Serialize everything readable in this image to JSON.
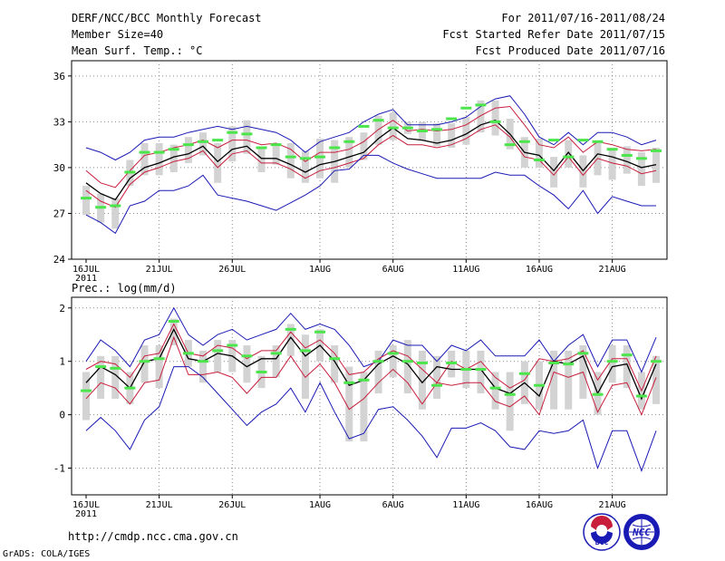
{
  "header": {
    "title": "DERF/NCC/BCC Monthly Forecast",
    "member_size": "Member Size=40",
    "variable": "Mean Surf. Temp.: °C",
    "period": "For 2011/07/16-2011/08/24",
    "started": "Fcst Started Refer Date 2011/07/15",
    "produced": "Fcst Produced Date 2011/07/16"
  },
  "footer": {
    "url": "http://cmdp.ncc.cma.gov.cn",
    "credit": "GrADS: COLA/IGES",
    "logo_bcc": "BCC",
    "logo_ncc": "NCC"
  },
  "colors": {
    "grid": "#888888",
    "box": "#d3d3d3",
    "green": "#4ce64c",
    "blue": "#1a1ab4",
    "red": "#c81e3c",
    "black": "#000000"
  },
  "x_axis": {
    "days": 40,
    "tick_labels": [
      "16JUL",
      "21JUL",
      "26JUL",
      "1AUG",
      "6AUG",
      "11AUG",
      "16AUG",
      "21AUG"
    ],
    "tick_days": [
      0,
      5,
      10,
      16,
      21,
      26,
      31,
      36
    ],
    "year_label": "2011"
  },
  "chart_data": [
    {
      "type": "line",
      "title": "Mean Surf. Temp.: °C",
      "xlabel": "",
      "ylabel": "°C",
      "ylim": [
        24,
        37
      ],
      "yticks": [
        24,
        27,
        30,
        33,
        36
      ],
      "x": [
        0,
        1,
        2,
        3,
        4,
        5,
        6,
        7,
        8,
        9,
        10,
        11,
        12,
        13,
        14,
        15,
        16,
        17,
        18,
        19,
        20,
        21,
        22,
        23,
        24,
        25,
        26,
        27,
        28,
        29,
        30,
        31,
        32,
        33,
        34,
        35,
        36,
        37,
        38,
        39
      ],
      "series": [
        {
          "name": "max",
          "values": [
            31.3,
            31.0,
            30.5,
            31.0,
            31.8,
            32.0,
            32.0,
            32.3,
            32.5,
            32.7,
            32.5,
            32.7,
            32.5,
            32.3,
            31.8,
            31.0,
            31.7,
            32.0,
            32.3,
            33.0,
            33.5,
            33.8,
            32.8,
            32.8,
            32.8,
            33.0,
            33.3,
            34.0,
            34.5,
            34.7,
            33.5,
            32.0,
            31.5,
            32.3,
            31.5,
            32.3,
            32.3,
            32.0,
            31.5,
            31.8
          ]
        },
        {
          "name": "ens_upper",
          "values": [
            29.8,
            29.0,
            28.7,
            29.8,
            30.8,
            31.0,
            31.3,
            31.5,
            31.8,
            31.3,
            31.8,
            31.8,
            31.5,
            31.6,
            31.2,
            30.4,
            31.0,
            31.0,
            31.2,
            31.7,
            32.5,
            33.1,
            32.4,
            32.5,
            32.4,
            32.5,
            32.8,
            33.4,
            33.9,
            34.0,
            32.8,
            31.5,
            31.3,
            32.0,
            31.0,
            31.7,
            31.5,
            31.2,
            31.1,
            31.2
          ]
        },
        {
          "name": "ens_mean",
          "values": [
            29.0,
            28.3,
            27.9,
            29.3,
            30.0,
            30.3,
            30.7,
            30.9,
            31.4,
            30.4,
            31.2,
            31.4,
            30.6,
            30.6,
            30.2,
            29.7,
            30.2,
            30.4,
            30.7,
            31.0,
            31.9,
            32.6,
            31.9,
            31.8,
            31.6,
            31.8,
            32.2,
            32.8,
            33.1,
            32.2,
            31.0,
            30.8,
            29.8,
            31.0,
            29.8,
            30.9,
            30.7,
            30.4,
            30.0,
            30.2
          ]
        },
        {
          "name": "ens_lower",
          "values": [
            28.5,
            27.8,
            27.4,
            28.9,
            29.7,
            30.0,
            30.4,
            30.6,
            31.1,
            30.0,
            30.9,
            31.1,
            30.3,
            30.3,
            29.9,
            29.3,
            29.8,
            30.0,
            30.3,
            30.6,
            31.5,
            32.1,
            31.5,
            31.5,
            31.3,
            31.5,
            31.9,
            32.5,
            32.8,
            32.0,
            30.7,
            30.5,
            29.5,
            30.7,
            29.5,
            30.6,
            30.3,
            30.1,
            29.6,
            29.8
          ]
        },
        {
          "name": "min",
          "values": [
            26.9,
            26.4,
            25.7,
            27.5,
            27.8,
            28.5,
            28.5,
            28.8,
            29.5,
            28.2,
            28.0,
            27.8,
            27.5,
            27.2,
            27.7,
            28.2,
            28.8,
            29.8,
            29.9,
            30.8,
            30.8,
            30.3,
            29.9,
            29.6,
            29.3,
            29.3,
            29.3,
            29.3,
            29.7,
            29.5,
            29.5,
            28.8,
            28.2,
            27.3,
            28.5,
            27.0,
            28.1,
            27.8,
            27.5,
            27.5
          ]
        },
        {
          "name": "median",
          "values": [
            28.0,
            27.4,
            27.5,
            29.7,
            31.0,
            31.0,
            31.2,
            31.5,
            31.7,
            31.8,
            32.3,
            32.2,
            31.3,
            31.5,
            30.7,
            30.6,
            30.7,
            31.3,
            31.7,
            32.7,
            33.1,
            32.6,
            32.6,
            32.4,
            32.5,
            33.2,
            33.9,
            34.1,
            33.0,
            31.5,
            31.7,
            30.5,
            31.8,
            30.7,
            31.8,
            31.7,
            31.2,
            30.8,
            30.6,
            31.1
          ]
        }
      ],
      "boxes": [
        [
          26.9,
          28.8
        ],
        [
          26.4,
          28.3
        ],
        [
          26.0,
          28.0
        ],
        [
          28.8,
          30.5
        ],
        [
          29.5,
          31.6
        ],
        [
          29.5,
          31.6
        ],
        [
          29.7,
          31.5
        ],
        [
          30.3,
          32.0
        ],
        [
          30.8,
          32.3
        ],
        [
          29.0,
          31.6
        ],
        [
          30.4,
          32.7
        ],
        [
          30.9,
          33.1
        ],
        [
          29.7,
          31.3
        ],
        [
          30.2,
          31.6
        ],
        [
          29.3,
          31.6
        ],
        [
          29.0,
          31.1
        ],
        [
          29.3,
          31.9
        ],
        [
          29.0,
          31.8
        ],
        [
          30.0,
          32.0
        ],
        [
          30.5,
          32.3
        ],
        [
          31.5,
          33.4
        ],
        [
          31.8,
          33.6
        ],
        [
          32.2,
          33.0
        ],
        [
          31.8,
          33.0
        ],
        [
          31.4,
          32.9
        ],
        [
          31.3,
          32.9
        ],
        [
          31.5,
          33.3
        ],
        [
          32.3,
          34.4
        ],
        [
          32.1,
          34.4
        ],
        [
          31.2,
          33.2
        ],
        [
          30.0,
          32.0
        ],
        [
          30.0,
          31.9
        ],
        [
          28.7,
          30.7
        ],
        [
          30.0,
          31.8
        ],
        [
          28.7,
          30.8
        ],
        [
          29.5,
          31.7
        ],
        [
          29.2,
          31.3
        ],
        [
          29.6,
          31.4
        ],
        [
          28.8,
          31.0
        ],
        [
          29.0,
          31.3
        ]
      ]
    },
    {
      "type": "line",
      "title": "Prec.: log(mm/d)",
      "xlabel": "",
      "ylabel": "log(mm/d)",
      "ylim": [
        -1.5,
        2.2
      ],
      "yticks": [
        -1,
        0,
        1,
        2
      ],
      "x": [
        0,
        1,
        2,
        3,
        4,
        5,
        6,
        7,
        8,
        9,
        10,
        11,
        12,
        13,
        14,
        15,
        16,
        17,
        18,
        19,
        20,
        21,
        22,
        23,
        24,
        25,
        26,
        27,
        28,
        29,
        30,
        31,
        32,
        33,
        34,
        35,
        36,
        37,
        38,
        39
      ],
      "series": [
        {
          "name": "max",
          "values": [
            1.0,
            1.4,
            1.2,
            0.9,
            1.4,
            1.5,
            2.0,
            1.5,
            1.3,
            1.5,
            1.6,
            1.4,
            1.5,
            1.6,
            1.9,
            1.6,
            1.7,
            1.6,
            1.3,
            0.9,
            1.0,
            1.4,
            1.3,
            1.3,
            1.0,
            1.3,
            1.2,
            1.4,
            1.1,
            1.1,
            1.1,
            1.4,
            1.0,
            1.3,
            1.5,
            0.9,
            1.4,
            1.4,
            0.8,
            1.45
          ]
        },
        {
          "name": "ens_upper",
          "values": [
            0.85,
            1.0,
            0.95,
            0.7,
            1.1,
            1.15,
            1.7,
            1.15,
            1.1,
            1.3,
            1.25,
            1.05,
            1.2,
            1.2,
            1.55,
            1.25,
            1.4,
            1.15,
            0.75,
            0.8,
            1.05,
            1.2,
            1.1,
            0.85,
            0.6,
            1.0,
            0.85,
            1.0,
            0.7,
            0.5,
            0.65,
            1.05,
            1.0,
            1.05,
            1.2,
            0.65,
            1.05,
            1.05,
            0.45,
            1.1
          ]
        },
        {
          "name": "ens_mean",
          "values": [
            0.6,
            0.9,
            0.75,
            0.5,
            1.0,
            1.05,
            1.6,
            1.05,
            1.0,
            1.15,
            1.1,
            0.9,
            1.05,
            1.05,
            1.45,
            1.1,
            1.3,
            1.0,
            0.55,
            0.65,
            0.95,
            1.1,
            0.95,
            0.6,
            0.9,
            0.85,
            0.85,
            0.85,
            0.5,
            0.4,
            0.6,
            0.35,
            1.0,
            0.95,
            1.1,
            0.4,
            0.9,
            0.95,
            0.3,
            0.95
          ]
        },
        {
          "name": "ens_lower",
          "values": [
            0.3,
            0.6,
            0.5,
            0.2,
            0.6,
            0.65,
            1.45,
            0.75,
            0.75,
            0.8,
            0.7,
            0.4,
            0.7,
            0.7,
            1.1,
            0.7,
            0.95,
            0.6,
            0.1,
            0.3,
            0.6,
            0.85,
            0.6,
            0.2,
            0.6,
            0.55,
            0.6,
            0.6,
            0.25,
            0.15,
            0.35,
            0.0,
            0.8,
            0.7,
            0.8,
            0.05,
            0.55,
            0.6,
            0.0,
            0.7
          ]
        },
        {
          "name": "min",
          "values": [
            -0.3,
            -0.05,
            -0.3,
            -0.65,
            -0.1,
            0.15,
            0.9,
            0.9,
            0.7,
            0.4,
            0.1,
            -0.2,
            0.05,
            0.2,
            0.5,
            0.05,
            0.6,
            0.05,
            -0.45,
            -0.35,
            0.1,
            0.15,
            -0.1,
            -0.4,
            -0.8,
            -0.25,
            -0.25,
            -0.15,
            -0.3,
            -0.6,
            -0.65,
            -0.3,
            -0.35,
            -0.3,
            -0.1,
            -1.0,
            -0.3,
            -0.3,
            -1.05,
            -0.3
          ]
        },
        {
          "name": "median",
          "values": [
            0.45,
            0.9,
            0.87,
            0.5,
            1.0,
            1.05,
            1.75,
            1.15,
            1.0,
            1.2,
            1.3,
            1.1,
            0.8,
            1.15,
            1.6,
            1.2,
            1.55,
            1.05,
            0.6,
            0.65,
            1.0,
            1.15,
            1.0,
            0.97,
            0.55,
            0.97,
            0.85,
            0.85,
            0.5,
            0.38,
            0.77,
            0.55,
            0.97,
            0.95,
            1.15,
            0.38,
            1.0,
            1.12,
            0.35,
            1.0
          ]
        }
      ],
      "boxes": [
        [
          -0.1,
          0.8
        ],
        [
          0.3,
          1.1
        ],
        [
          0.3,
          1.1
        ],
        [
          0.2,
          0.8
        ],
        [
          0.6,
          1.3
        ],
        [
          0.5,
          1.3
        ],
        [
          1.3,
          1.8
        ],
        [
          0.9,
          1.4
        ],
        [
          0.6,
          1.2
        ],
        [
          0.8,
          1.4
        ],
        [
          0.8,
          1.4
        ],
        [
          0.6,
          1.3
        ],
        [
          0.5,
          1.1
        ],
        [
          0.7,
          1.3
        ],
        [
          1.1,
          1.7
        ],
        [
          0.3,
          1.5
        ],
        [
          1.0,
          1.6
        ],
        [
          0.6,
          1.3
        ],
        [
          -0.5,
          0.9
        ],
        [
          -0.5,
          0.8
        ],
        [
          0.4,
          1.2
        ],
        [
          0.7,
          1.3
        ],
        [
          0.4,
          1.4
        ],
        [
          0.1,
          1.2
        ],
        [
          0.3,
          1.1
        ],
        [
          0.7,
          1.2
        ],
        [
          0.5,
          1.2
        ],
        [
          0.4,
          1.2
        ],
        [
          0.1,
          0.8
        ],
        [
          -0.3,
          0.8
        ],
        [
          0.2,
          1.0
        ],
        [
          0.1,
          1.0
        ],
        [
          0.1,
          1.2
        ],
        [
          0.1,
          1.2
        ],
        [
          0.3,
          1.3
        ],
        [
          0.0,
          0.8
        ],
        [
          0.6,
          1.3
        ],
        [
          0.5,
          1.3
        ],
        [
          0.1,
          0.8
        ],
        [
          0.2,
          1.1
        ]
      ]
    }
  ]
}
